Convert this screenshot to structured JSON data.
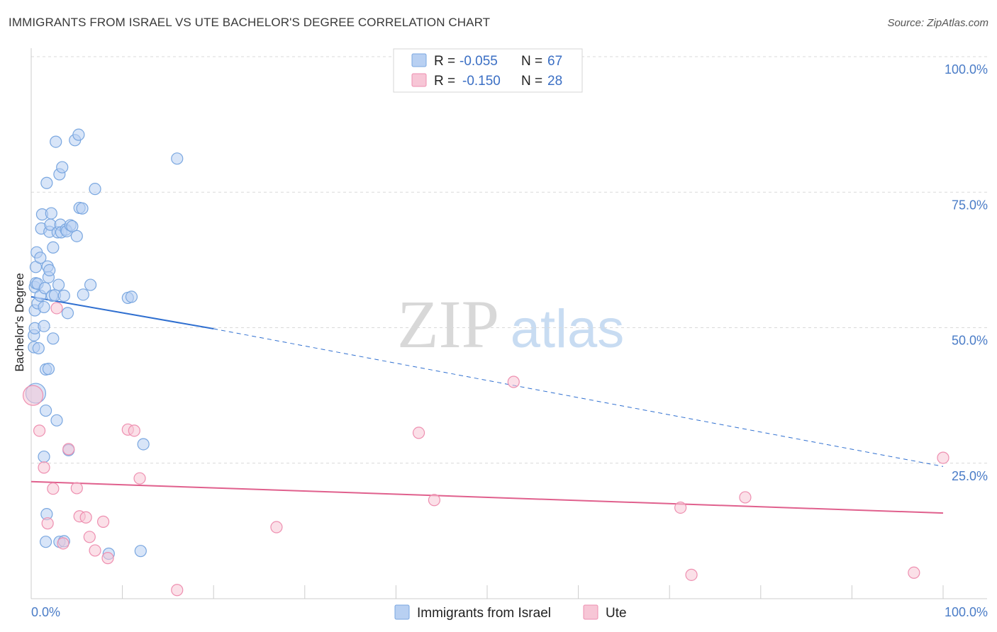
{
  "header": {
    "title": "IMMIGRANTS FROM ISRAEL VS UTE BACHELOR'S DEGREE CORRELATION CHART",
    "source": "Source: ZipAtlas.com"
  },
  "colors": {
    "blue": "#7aa7e0",
    "blue_fill": "#b8d0f2",
    "blue_line": "#2f6fd0",
    "pink": "#ee8fb0",
    "pink_fill": "#f7c6d6",
    "pink_line": "#e0608d",
    "grid": "#d9d9d9",
    "tick_label": "#4a7cc7"
  },
  "watermark": {
    "part1": "ZIP",
    "part2": "atlas"
  },
  "legend": {
    "rows": [
      {
        "r_label": "R = ",
        "r_value": "-0.055",
        "n_label": "N = ",
        "n_value": "67"
      },
      {
        "r_label": "R = ",
        "r_value": "-0.150",
        "n_label": "N = ",
        "n_value": "28"
      }
    ]
  },
  "bottom_legend": [
    "Immigrants from Israel",
    "Ute"
  ],
  "chart_data": {
    "type": "scatter",
    "title": "IMMIGRANTS FROM ISRAEL VS UTE BACHELOR'S DEGREE CORRELATION CHART",
    "xlabel": "",
    "ylabel": "Bachelor's Degree",
    "xlim": [
      0,
      100
    ],
    "ylim": [
      0,
      100
    ],
    "x_tick_labels": [
      "0.0%",
      "100.0%"
    ],
    "y_tick_labels": [
      "100.0%",
      "75.0%",
      "50.0%",
      "25.0%"
    ],
    "y_ticks": [
      100,
      75,
      50,
      25
    ],
    "series": [
      {
        "name": "Immigrants from Israel",
        "R": -0.055,
        "N": 67,
        "trend": {
          "x0": 0,
          "y0": 55.7,
          "x1": 20,
          "y1": 49.8,
          "dashed_to_x": 100,
          "dashed_to_y": 24.4
        },
        "points": [
          [
            0.3,
            46.4
          ],
          [
            0.3,
            48.6
          ],
          [
            0.4,
            49.9
          ],
          [
            0.4,
            53.2
          ],
          [
            0.4,
            57.5
          ],
          [
            0.5,
            58.2
          ],
          [
            0.5,
            61.2
          ],
          [
            0.6,
            63.9
          ],
          [
            0.7,
            54.5
          ],
          [
            0.7,
            58.1
          ],
          [
            0.8,
            46.2
          ],
          [
            1.0,
            55.9
          ],
          [
            1.0,
            62.9
          ],
          [
            1.1,
            68.3
          ],
          [
            1.2,
            70.9
          ],
          [
            1.4,
            50.3
          ],
          [
            1.4,
            53.8
          ],
          [
            1.5,
            57.3
          ],
          [
            1.6,
            42.3
          ],
          [
            1.6,
            34.7
          ],
          [
            1.7,
            76.7
          ],
          [
            1.8,
            61.3
          ],
          [
            1.9,
            42.4
          ],
          [
            1.9,
            59.3
          ],
          [
            2.0,
            60.6
          ],
          [
            2.0,
            67.7
          ],
          [
            2.1,
            69.0
          ],
          [
            2.2,
            71.1
          ],
          [
            2.3,
            55.9
          ],
          [
            2.4,
            64.8
          ],
          [
            2.4,
            48.0
          ],
          [
            2.6,
            56.0
          ],
          [
            2.7,
            84.3
          ],
          [
            2.8,
            32.9
          ],
          [
            2.9,
            67.6
          ],
          [
            3.0,
            57.9
          ],
          [
            3.1,
            78.3
          ],
          [
            3.2,
            69.0
          ],
          [
            3.3,
            67.6
          ],
          [
            3.4,
            79.6
          ],
          [
            3.6,
            55.9
          ],
          [
            3.8,
            68.1
          ],
          [
            3.9,
            67.8
          ],
          [
            4.0,
            52.7
          ],
          [
            4.1,
            27.4
          ],
          [
            4.3,
            68.9
          ],
          [
            4.5,
            68.7
          ],
          [
            4.8,
            84.6
          ],
          [
            5.0,
            66.9
          ],
          [
            5.2,
            85.6
          ],
          [
            5.3,
            72.1
          ],
          [
            5.6,
            72.0
          ],
          [
            5.7,
            56.1
          ],
          [
            6.5,
            57.9
          ],
          [
            7.0,
            75.6
          ],
          [
            8.5,
            8.3
          ],
          [
            10.6,
            55.5
          ],
          [
            11.0,
            55.7
          ],
          [
            12.0,
            8.8
          ],
          [
            12.3,
            28.5
          ],
          [
            16.0,
            81.2
          ],
          [
            0.5,
            37.9
          ],
          [
            1.4,
            26.2
          ],
          [
            1.6,
            10.5
          ],
          [
            1.7,
            15.6
          ],
          [
            3.1,
            10.5
          ],
          [
            3.6,
            10.6
          ]
        ]
      },
      {
        "name": "Ute",
        "R": -0.15,
        "N": 28,
        "trend": {
          "x0": 0,
          "y0": 21.6,
          "x1": 100,
          "y1": 15.8
        },
        "points": [
          [
            0.2,
            37.5
          ],
          [
            0.9,
            31.0
          ],
          [
            1.4,
            24.2
          ],
          [
            1.8,
            13.9
          ],
          [
            2.4,
            20.3
          ],
          [
            2.8,
            53.6
          ],
          [
            3.5,
            10.2
          ],
          [
            4.1,
            27.6
          ],
          [
            5.0,
            20.4
          ],
          [
            5.3,
            15.2
          ],
          [
            6.0,
            15.0
          ],
          [
            6.4,
            11.4
          ],
          [
            7.0,
            8.9
          ],
          [
            7.9,
            14.2
          ],
          [
            8.4,
            7.5
          ],
          [
            10.6,
            31.2
          ],
          [
            11.3,
            31.0
          ],
          [
            11.9,
            22.2
          ],
          [
            16.0,
            1.6
          ],
          [
            26.9,
            13.2
          ],
          [
            42.5,
            30.6
          ],
          [
            44.2,
            18.2
          ],
          [
            52.9,
            40.0
          ],
          [
            71.2,
            16.8
          ],
          [
            72.4,
            4.4
          ],
          [
            78.3,
            18.7
          ],
          [
            96.8,
            4.8
          ],
          [
            100.0,
            26.0
          ]
        ]
      }
    ]
  }
}
